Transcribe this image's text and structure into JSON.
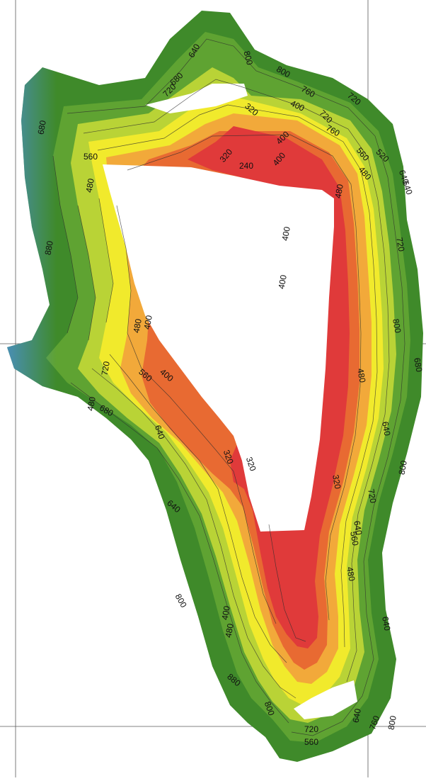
{
  "map": {
    "colors": {
      "background": "#ffffff",
      "edge_blue": "#4a8fc8",
      "green_dark": "#3f8a2a",
      "green": "#5fa332",
      "yellow_green": "#b9d336",
      "yellow": "#f1ea2c",
      "orange": "#f2a93a",
      "orange_red": "#e86a32",
      "red": "#e03a3a",
      "grid": "#5a5a5a",
      "contour": "#2d2d2d"
    },
    "contour_labels": [
      "640",
      "800",
      "800",
      "760",
      "680",
      "720",
      "320",
      "400",
      "720",
      "760",
      "720",
      "520",
      "640",
      "400",
      "680",
      "560",
      "480",
      "400",
      "320",
      "240",
      "560",
      "480",
      "640",
      "480",
      "400",
      "880",
      "720",
      "400",
      "480",
      "400",
      "800",
      "480",
      "680",
      "640",
      "720",
      "560",
      "400",
      "480",
      "680",
      "640",
      "320",
      "320",
      "640",
      "800",
      "320",
      "640",
      "720",
      "560",
      "480",
      "640",
      "800",
      "400",
      "480",
      "880",
      "800",
      "720",
      "560",
      "640",
      "760",
      "800"
    ]
  }
}
